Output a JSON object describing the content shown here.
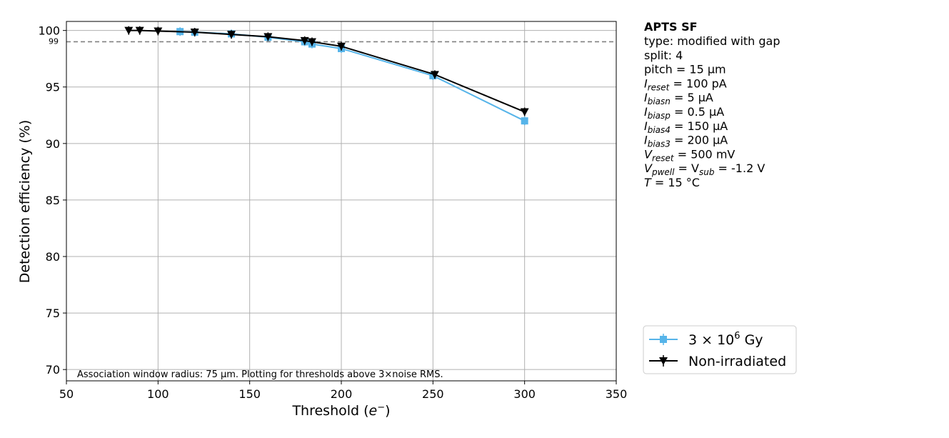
{
  "chart_data": {
    "type": "line",
    "xlabel": "Threshold (e⁻)",
    "xlabel_main": "Threshold (",
    "xlabel_symbol": "e",
    "xlabel_sup": "−",
    "xlabel_close": ")",
    "ylabel": "Detection efficiency (%)",
    "xlim": [
      50,
      350
    ],
    "ylim": [
      69,
      100.8
    ],
    "xticks": [
      "50",
      "100",
      "150",
      "200",
      "250",
      "300",
      "350"
    ],
    "xtick_values": [
      50,
      100,
      150,
      200,
      250,
      300,
      350
    ],
    "yticks": [
      "70",
      "75",
      "80",
      "85",
      "90",
      "95",
      "100"
    ],
    "ytick_values": [
      70,
      75,
      80,
      85,
      90,
      95,
      100
    ],
    "grid": true,
    "reference_line": {
      "y": 99,
      "label": "99",
      "style": "dashed",
      "color": "#808080"
    },
    "annotation": "Association window radius: 75 µm. Plotting for thresholds above 3×noise RMS.",
    "series": [
      {
        "name": "3 × 10⁶ Gy",
        "color": "#56b4e9",
        "marker": "square",
        "x": [
          112,
          120,
          140,
          160,
          180,
          184,
          200,
          250,
          300
        ],
        "y": [
          99.9,
          99.85,
          99.7,
          99.4,
          99.0,
          98.8,
          98.4,
          96.0,
          92.0
        ]
      },
      {
        "name": "Non-irradiated",
        "color": "#000000",
        "marker": "triangle-down",
        "x": [
          84,
          90,
          100,
          120,
          140,
          160,
          180,
          184,
          200,
          251,
          300
        ],
        "y": [
          100.0,
          100.0,
          99.95,
          99.85,
          99.65,
          99.45,
          99.1,
          99.0,
          98.6,
          96.1,
          92.8
        ]
      }
    ],
    "legend": {
      "position": "right",
      "entries": [
        {
          "base": "3 × 10",
          "sup": "6",
          "suffix": " Gy"
        },
        {
          "base": "Non-irradiated",
          "sup": "",
          "suffix": ""
        }
      ]
    }
  },
  "info": {
    "title": "APTS SF",
    "lines": [
      {
        "sym": "",
        "sub": "",
        "rest": "type: modified with gap"
      },
      {
        "sym": "",
        "sub": "",
        "rest": "split:  4"
      },
      {
        "sym": "",
        "sub": "",
        "rest": "pitch = 15 µm"
      },
      {
        "sym": "I",
        "sub": "reset",
        "rest": " = 100 pA"
      },
      {
        "sym": "I",
        "sub": "biasn",
        "rest": " = 5 µA"
      },
      {
        "sym": "I",
        "sub": "biasp",
        "rest": " = 0.5 µA"
      },
      {
        "sym": "I",
        "sub": "bias4",
        "rest": " = 150 µA"
      },
      {
        "sym": "I",
        "sub": "bias3",
        "rest": " = 200 µA"
      },
      {
        "sym": "V",
        "sub": "reset",
        "rest": " = 500 mV"
      },
      {
        "sym": "V",
        "sub": "pwell",
        "rest": " = V",
        "sub2": "sub",
        "rest2": " = -1.2 V"
      },
      {
        "sym": "T",
        "sub": "",
        "rest": " = 15 °C"
      }
    ]
  }
}
